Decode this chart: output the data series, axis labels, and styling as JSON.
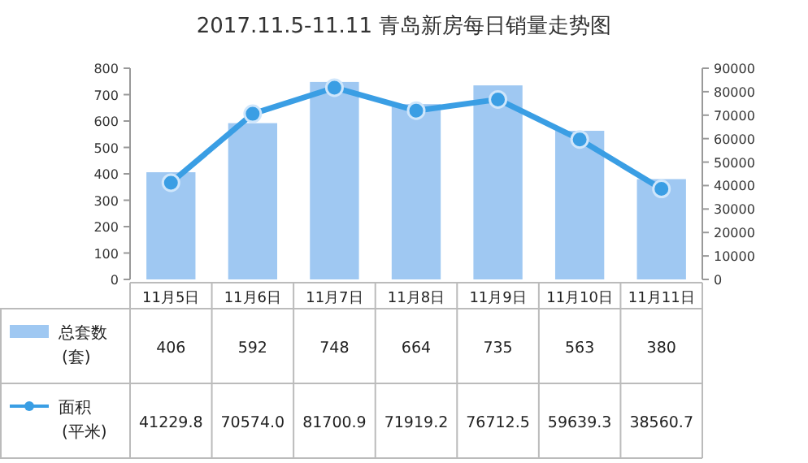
{
  "chart_data": {
    "type": "bar",
    "title": "2017.11.5-11.11  青岛新房每日销量走势图",
    "categories": [
      "11月5日",
      "11月6日",
      "11月7日",
      "11月8日",
      "11月9日",
      "11月10日",
      "11月11日"
    ],
    "series": [
      {
        "name": "总套数\n(套)",
        "color": "#9fc8f2",
        "values": [
          406,
          592,
          748,
          664,
          735,
          563,
          380
        ]
      },
      {
        "name": "面积\n(平米)",
        "type": "line",
        "axis": "y2",
        "color": "#3a9ee4",
        "values": [
          41229.8,
          70574.0,
          81700.9,
          71919.2,
          76712.5,
          59639.3,
          38560.7
        ],
        "value_labels": [
          "41229.8",
          "70574.0",
          "81700.9",
          "71919.2",
          "76712.5",
          "59639.3",
          "38560.7"
        ]
      }
    ],
    "ylim": [
      0,
      800
    ],
    "yticks": [
      0,
      100,
      200,
      300,
      400,
      500,
      600,
      700,
      800
    ],
    "y2lim": [
      0,
      90000
    ],
    "y2ticks": [
      0,
      10000,
      20000,
      30000,
      40000,
      50000,
      60000,
      70000,
      80000,
      90000
    ],
    "data_labels": true,
    "legend": "bottom",
    "grid": false,
    "marker": "circle",
    "line_style": "solid"
  }
}
